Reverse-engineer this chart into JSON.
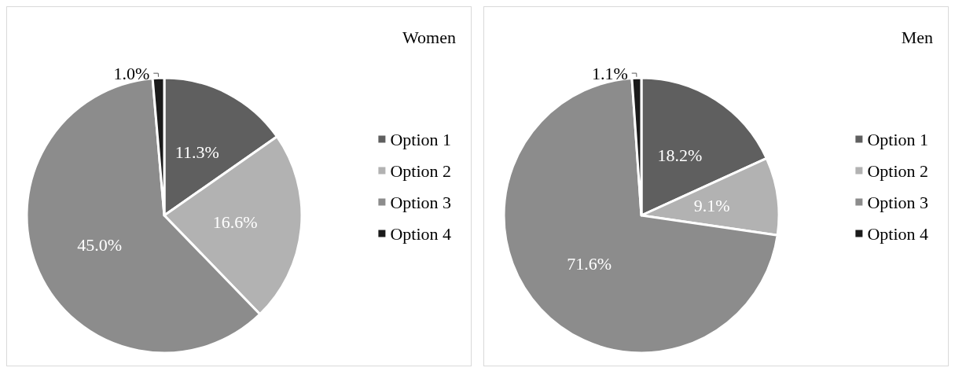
{
  "chart_data": [
    {
      "type": "pie",
      "title": "Women",
      "categories": [
        "Option 1",
        "Option 2",
        "Option 3",
        "Option 4"
      ],
      "values": [
        11.3,
        16.6,
        45.0,
        1.0
      ],
      "value_labels": [
        "11.3%",
        "16.6%",
        "45.0%",
        "1.0%"
      ],
      "colors": [
        "#5f5f5f",
        "#b2b2b2",
        "#8c8c8c",
        "#1a1a1a"
      ],
      "legend": "right"
    },
    {
      "type": "pie",
      "title": "Men",
      "categories": [
        "Option 1",
        "Option 2",
        "Option 3",
        "Option 4"
      ],
      "values": [
        18.2,
        9.1,
        71.6,
        1.1
      ],
      "value_labels": [
        "18.2%",
        "9.1%",
        "71.6%",
        "1.1%"
      ],
      "colors": [
        "#5f5f5f",
        "#b2b2b2",
        "#8c8c8c",
        "#1a1a1a"
      ],
      "legend": "right"
    }
  ]
}
